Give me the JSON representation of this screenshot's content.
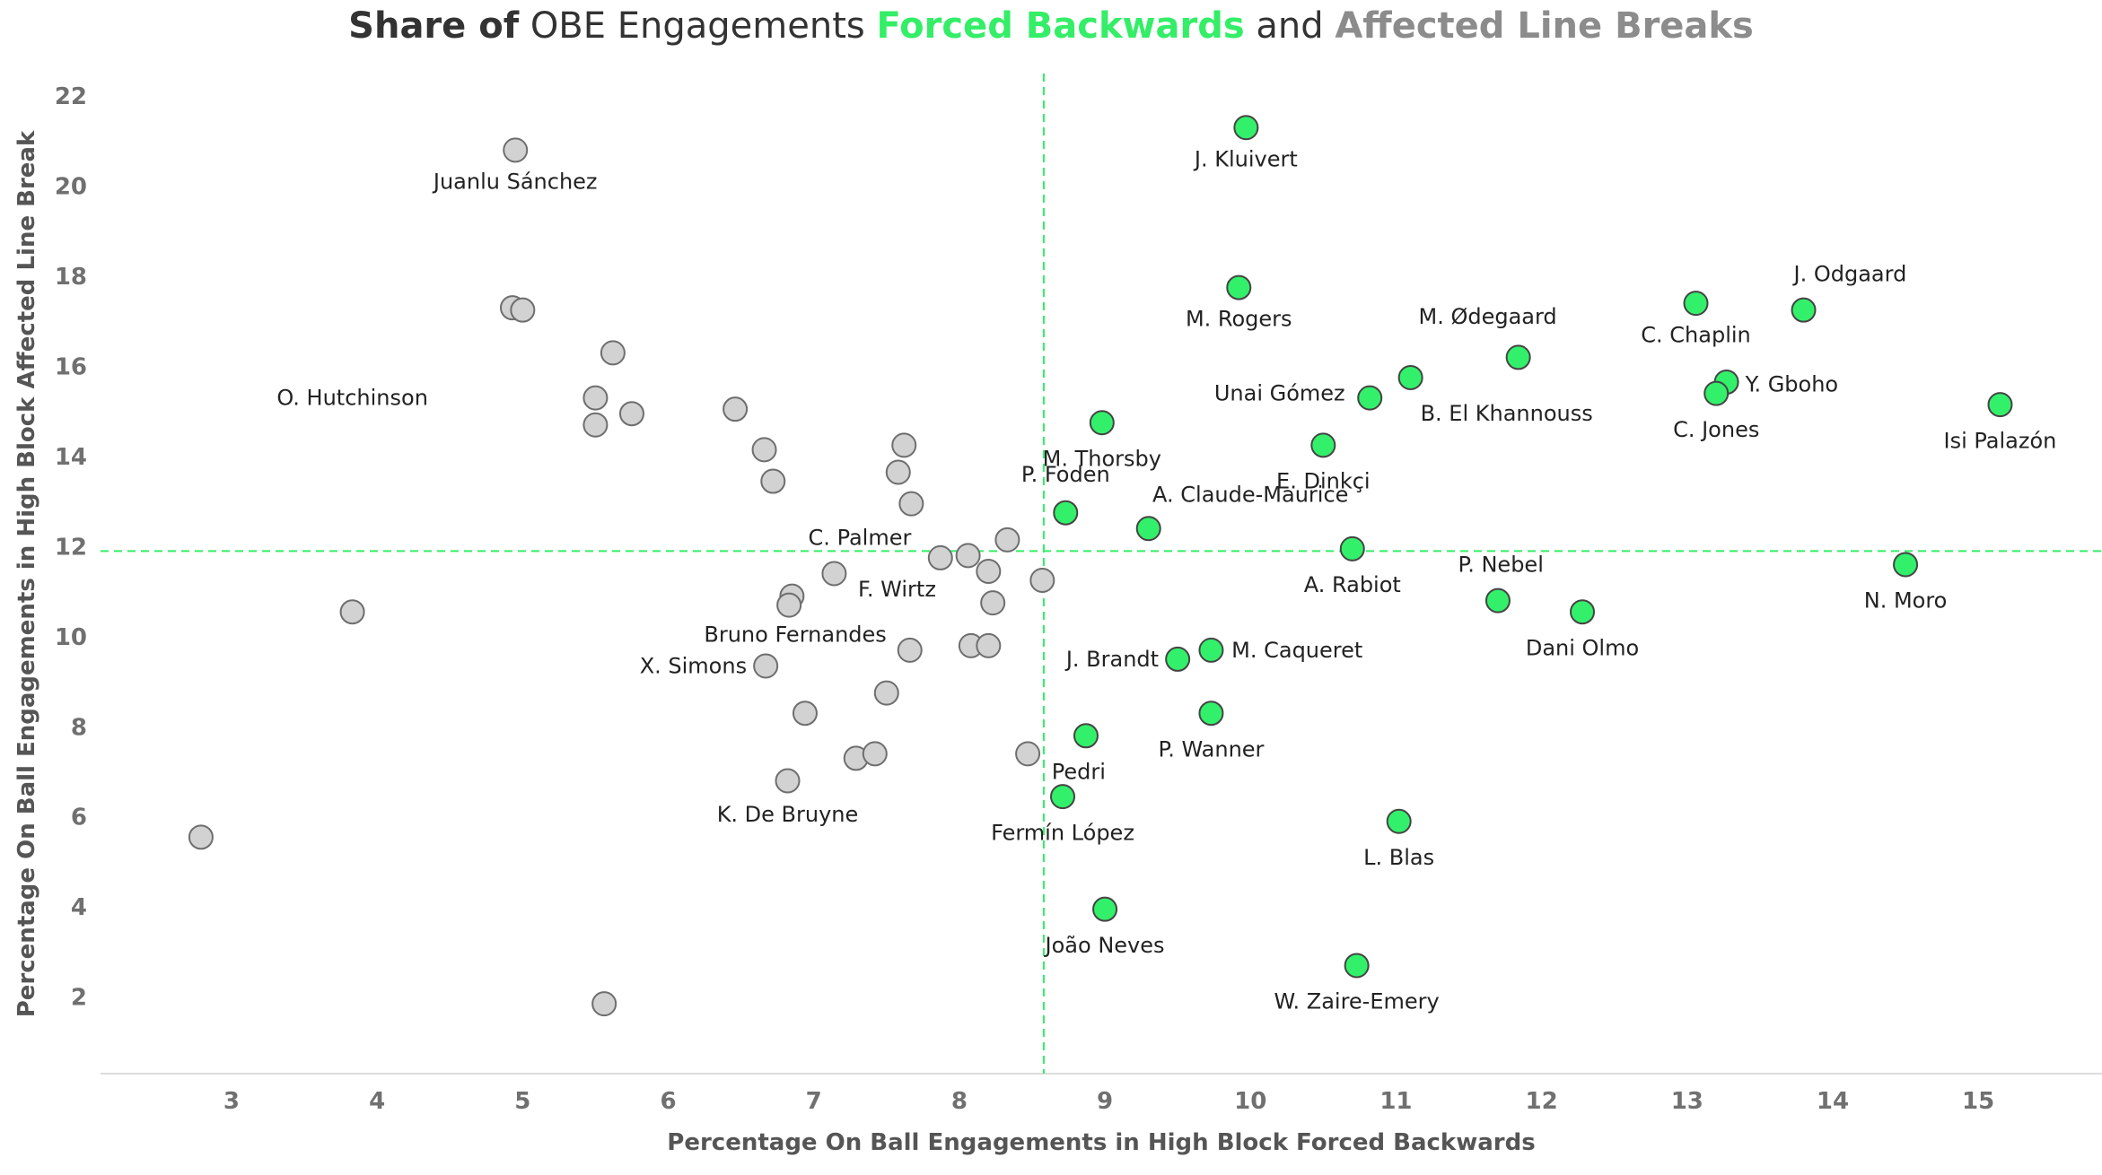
{
  "title": {
    "part1": "Share of",
    "part2": " OBE Engagements ",
    "part3": "Forced Backwards",
    "part4": " and ",
    "part5": "Affected Line Breaks"
  },
  "colors": {
    "highlight": "#33f06b",
    "neutral": "#d2d2d2",
    "reference_line": "#33ee66",
    "title_green": "#33ee66",
    "title_gray": "#8c8c8c"
  },
  "chart_data": {
    "type": "scatter",
    "title": "Share of OBE Engagements Forced Backwards and Affected Line Breaks",
    "xlabel": "Percentage On Ball Engagements in High Block Forced Backwards",
    "ylabel": "Percentage On Ball Engagements in High Block Affected Line Break",
    "xlim": [
      2.1,
      15.85
    ],
    "ylim": [
      0.3,
      22.5
    ],
    "xticks": [
      3,
      4,
      5,
      6,
      7,
      8,
      9,
      10,
      11,
      12,
      13,
      14,
      15
    ],
    "yticks": [
      2,
      4,
      6,
      8,
      10,
      12,
      14,
      16,
      18,
      20,
      22
    ],
    "reference_lines": {
      "x": 8.58,
      "y": 11.9
    },
    "highlighted": [
      {
        "name": "J. Kluivert",
        "x": 9.97,
        "y": 21.3,
        "lx": 9.97,
        "ly": 20.6,
        "anchor": "middle"
      },
      {
        "name": "M. Rogers",
        "x": 9.92,
        "y": 17.75,
        "lx": 9.92,
        "ly": 17.05,
        "anchor": "middle"
      },
      {
        "name": "M. Ødegaard",
        "x": 11.84,
        "y": 16.2,
        "lx": 11.63,
        "ly": 17.1,
        "anchor": "middle"
      },
      {
        "name": "C. Chaplin",
        "x": 13.06,
        "y": 17.4,
        "lx": 13.06,
        "ly": 16.7,
        "anchor": "middle"
      },
      {
        "name": "J. Odgaard",
        "x": 13.8,
        "y": 17.25,
        "lx": 14.12,
        "ly": 18.05,
        "anchor": "middle"
      },
      {
        "name": "Unai Gómez",
        "x": 10.82,
        "y": 15.3,
        "lx": 10.65,
        "ly": 15.4,
        "anchor": "end"
      },
      {
        "name": "B. El Khannouss",
        "x": 11.1,
        "y": 15.75,
        "lx": 11.76,
        "ly": 14.95,
        "anchor": "middle"
      },
      {
        "name": "Y. Gboho",
        "x": 13.27,
        "y": 15.65,
        "lx": 13.4,
        "ly": 15.6,
        "anchor": "start"
      },
      {
        "name": "C. Jones",
        "x": 13.2,
        "y": 15.4,
        "lx": 13.2,
        "ly": 14.6,
        "anchor": "middle"
      },
      {
        "name": "Isi Palazón",
        "x": 15.15,
        "y": 15.15,
        "lx": 15.15,
        "ly": 14.35,
        "anchor": "middle"
      },
      {
        "name": "M. Thorsby",
        "x": 8.98,
        "y": 14.75,
        "lx": 8.98,
        "ly": 13.95,
        "anchor": "middle"
      },
      {
        "name": "E. Dinkçi",
        "x": 10.5,
        "y": 14.25,
        "lx": 10.5,
        "ly": 13.45,
        "anchor": "middle"
      },
      {
        "name": "P. Foden",
        "x": 8.73,
        "y": 12.75,
        "lx": 8.73,
        "ly": 13.6,
        "anchor": "middle"
      },
      {
        "name": "A. Claude-Maurice",
        "x": 9.3,
        "y": 12.4,
        "lx": 10.0,
        "ly": 13.15,
        "anchor": "middle"
      },
      {
        "name": "A. Rabiot",
        "x": 10.7,
        "y": 11.95,
        "lx": 10.7,
        "ly": 11.15,
        "anchor": "middle"
      },
      {
        "name": "N. Moro",
        "x": 14.5,
        "y": 11.6,
        "lx": 14.5,
        "ly": 10.8,
        "anchor": "middle"
      },
      {
        "name": "P. Nebel",
        "x": 11.7,
        "y": 10.8,
        "lx": 11.72,
        "ly": 11.6,
        "anchor": "middle"
      },
      {
        "name": "Dani Olmo",
        "x": 12.28,
        "y": 10.55,
        "lx": 12.28,
        "ly": 9.75,
        "anchor": "middle"
      },
      {
        "name": "M. Caqueret",
        "x": 9.73,
        "y": 9.7,
        "lx": 9.87,
        "ly": 9.7,
        "anchor": "start"
      },
      {
        "name": "J. Brandt",
        "x": 9.5,
        "y": 9.5,
        "lx": 9.37,
        "ly": 9.5,
        "anchor": "end"
      },
      {
        "name": "P. Wanner",
        "x": 9.73,
        "y": 8.3,
        "lx": 9.73,
        "ly": 7.5,
        "anchor": "middle"
      },
      {
        "name": "Pedri",
        "x": 8.87,
        "y": 7.8,
        "lx": 8.82,
        "ly": 7.0,
        "anchor": "middle"
      },
      {
        "name": "Fermín López",
        "x": 8.71,
        "y": 6.45,
        "lx": 8.71,
        "ly": 5.65,
        "anchor": "middle"
      },
      {
        "name": "L. Blas",
        "x": 11.02,
        "y": 5.9,
        "lx": 11.02,
        "ly": 5.1,
        "anchor": "middle"
      },
      {
        "name": "João Neves",
        "x": 9.0,
        "y": 3.95,
        "lx": 9.0,
        "ly": 3.15,
        "anchor": "middle"
      },
      {
        "name": "W. Zaire-Emery",
        "x": 10.73,
        "y": 2.7,
        "lx": 10.73,
        "ly": 1.9,
        "anchor": "middle"
      }
    ],
    "others": [
      {
        "x": 4.95,
        "y": 20.8
      },
      {
        "x": 4.93,
        "y": 17.3
      },
      {
        "x": 5.0,
        "y": 17.25
      },
      {
        "x": 5.62,
        "y": 16.3
      },
      {
        "x": 5.5,
        "y": 15.3
      },
      {
        "x": 5.5,
        "y": 14.7
      },
      {
        "x": 5.75,
        "y": 14.95
      },
      {
        "x": 6.46,
        "y": 15.05
      },
      {
        "x": 6.66,
        "y": 14.15
      },
      {
        "x": 6.72,
        "y": 13.45
      },
      {
        "x": 7.62,
        "y": 14.25
      },
      {
        "x": 7.58,
        "y": 13.65
      },
      {
        "x": 7.67,
        "y": 12.95
      },
      {
        "x": 8.33,
        "y": 12.15
      },
      {
        "x": 7.87,
        "y": 11.75
      },
      {
        "x": 8.06,
        "y": 11.8
      },
      {
        "x": 8.2,
        "y": 11.45
      },
      {
        "x": 8.57,
        "y": 11.25
      },
      {
        "x": 7.14,
        "y": 11.4
      },
      {
        "x": 6.85,
        "y": 10.9
      },
      {
        "x": 6.83,
        "y": 10.7
      },
      {
        "x": 8.23,
        "y": 10.75
      },
      {
        "x": 3.83,
        "y": 10.55
      },
      {
        "x": 7.66,
        "y": 9.7
      },
      {
        "x": 8.08,
        "y": 9.8
      },
      {
        "x": 8.2,
        "y": 9.8
      },
      {
        "x": 6.67,
        "y": 9.35
      },
      {
        "x": 7.5,
        "y": 8.75
      },
      {
        "x": 6.94,
        "y": 8.3
      },
      {
        "x": 7.29,
        "y": 7.3
      },
      {
        "x": 7.42,
        "y": 7.4
      },
      {
        "x": 8.47,
        "y": 7.4
      },
      {
        "x": 6.82,
        "y": 6.8
      },
      {
        "x": 2.79,
        "y": 5.55
      },
      {
        "x": 5.56,
        "y": 1.85
      }
    ],
    "other_labels": [
      {
        "name": "Juanlu Sánchez",
        "x": 4.95,
        "y": 20.1,
        "anchor": "middle"
      },
      {
        "name": "O. Hutchinson",
        "x": 4.35,
        "y": 15.3,
        "anchor": "end"
      },
      {
        "name": "C. Palmer",
        "x": 7.67,
        "y": 12.2,
        "anchor": "end"
      },
      {
        "name": "F. Wirtz",
        "x": 7.84,
        "y": 11.05,
        "anchor": "end"
      },
      {
        "name": "Bruno Fernandes",
        "x": 7.5,
        "y": 10.05,
        "anchor": "end"
      },
      {
        "name": "X. Simons",
        "x": 6.54,
        "y": 9.35,
        "anchor": "end"
      },
      {
        "name": "K. De Bruyne",
        "x": 6.82,
        "y": 6.05,
        "anchor": "middle"
      }
    ]
  }
}
